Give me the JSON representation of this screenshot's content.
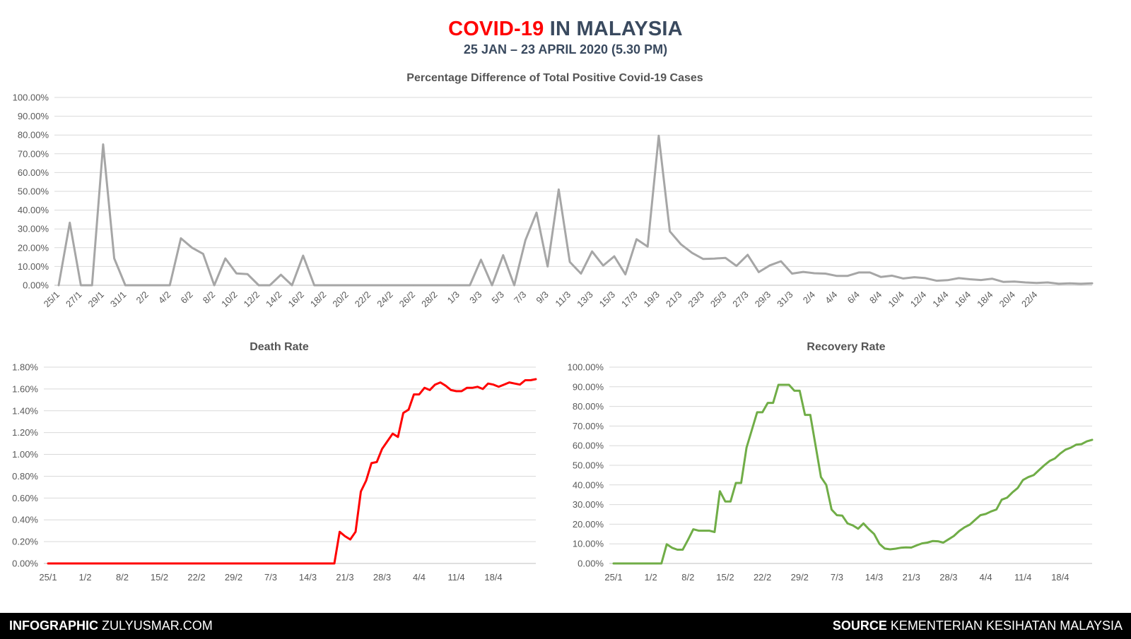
{
  "header": {
    "title_red": "COVID-19",
    "title_rest": "IN MALAYSIA",
    "subtitle": "25 JAN – 23 APRIL 2020 (5.30 PM)"
  },
  "colors": {
    "red": "#ff0000",
    "dark": "#3a4a5f",
    "grey_line": "#a6a6a6",
    "green_line": "#70ad47",
    "grid": "#d9d9d9"
  },
  "chart_data": [
    {
      "type": "line",
      "title": "Percentage Difference of Total Positive Covid-19 Cases",
      "series_color": "#a6a6a6",
      "ylim": [
        0,
        100
      ],
      "yticks": [
        "0.00%",
        "10.00%",
        "20.00%",
        "30.00%",
        "40.00%",
        "50.00%",
        "60.00%",
        "70.00%",
        "80.00%",
        "90.00%",
        "100.00%"
      ],
      "ytick_values": [
        0,
        10,
        20,
        30,
        40,
        50,
        60,
        70,
        80,
        90,
        100
      ],
      "xtick_labels": [
        "25/1",
        "27/1",
        "29/1",
        "31/1",
        "2/2",
        "4/2",
        "6/2",
        "8/2",
        "10/2",
        "12/2",
        "14/2",
        "16/2",
        "18/2",
        "20/2",
        "22/2",
        "24/2",
        "26/2",
        "28/2",
        "1/3",
        "3/3",
        "5/3",
        "7/3",
        "9/3",
        "11/3",
        "13/3",
        "15/3",
        "17/3",
        "19/3",
        "21/3",
        "23/3",
        "25/3",
        "27/3",
        "29/3",
        "31/3",
        "2/4",
        "4/4",
        "6/4",
        "8/4",
        "10/4",
        "12/4",
        "14/4",
        "16/4",
        "18/4",
        "20/4",
        "22/4"
      ],
      "x_start_date": "2020-01-25",
      "values": [
        0,
        33.3,
        0,
        0,
        75,
        14.3,
        0,
        0,
        0,
        0,
        0,
        25,
        20,
        16.7,
        0,
        14.3,
        6.3,
        5.9,
        0,
        0,
        5.6,
        0,
        15.8,
        0,
        0,
        0,
        0,
        0,
        0,
        0,
        0,
        0,
        0,
        0,
        0,
        0,
        0,
        0,
        13.6,
        0,
        16,
        0,
        24,
        38.7,
        10,
        51,
        12.4,
        6.2,
        18,
        10.5,
        15.4,
        5.8,
        24.5,
        20.6,
        79.6,
        28.7,
        21.8,
        17.2,
        14,
        14.2,
        14.6,
        10.3,
        16.2,
        7,
        10.6,
        12.8,
        6.2,
        7.1,
        6.4,
        6.2,
        5,
        5,
        6.8,
        6.8,
        4.4,
        5.1,
        3.6,
        4.3,
        3.8,
        2.4,
        2.7,
        3.8,
        3.2,
        2.8,
        3.5,
        1.8,
        2,
        1.5,
        1.2,
        1.5,
        0.8,
        1,
        0.8,
        1
      ]
    },
    {
      "type": "line",
      "title": "Death Rate",
      "series_color": "#ff0000",
      "ylim": [
        0,
        1.8
      ],
      "yticks": [
        "0.00%",
        "0.20%",
        "0.40%",
        "0.60%",
        "0.80%",
        "1.00%",
        "1.20%",
        "1.40%",
        "1.60%",
        "1.80%"
      ],
      "ytick_values": [
        0,
        0.2,
        0.4,
        0.6,
        0.8,
        1.0,
        1.2,
        1.4,
        1.6,
        1.8
      ],
      "xtick_labels": [
        "25/1",
        "1/2",
        "8/2",
        "15/2",
        "22/2",
        "29/2",
        "7/3",
        "14/3",
        "21/3",
        "28/3",
        "4/4",
        "11/4",
        "18/4"
      ],
      "x_start_date": "2020-01-25",
      "values": [
        0,
        0,
        0,
        0,
        0,
        0,
        0,
        0,
        0,
        0,
        0,
        0,
        0,
        0,
        0,
        0,
        0,
        0,
        0,
        0,
        0,
        0,
        0,
        0,
        0,
        0,
        0,
        0,
        0,
        0,
        0,
        0,
        0,
        0,
        0,
        0,
        0,
        0,
        0,
        0,
        0,
        0,
        0,
        0,
        0,
        0,
        0,
        0,
        0,
        0,
        0,
        0,
        0,
        0,
        0,
        0.29,
        0.25,
        0.22,
        0.29,
        0.66,
        0.76,
        0.92,
        0.93,
        1.05,
        1.12,
        1.19,
        1.16,
        1.38,
        1.41,
        1.55,
        1.55,
        1.61,
        1.59,
        1.64,
        1.66,
        1.63,
        1.59,
        1.58,
        1.58,
        1.61,
        1.61,
        1.62,
        1.6,
        1.65,
        1.64,
        1.62,
        1.64,
        1.66,
        1.65,
        1.64,
        1.68,
        1.68,
        1.69
      ]
    },
    {
      "type": "line",
      "title": "Recovery Rate",
      "series_color": "#70ad47",
      "ylim": [
        0,
        100
      ],
      "yticks": [
        "0.00%",
        "10.00%",
        "20.00%",
        "30.00%",
        "40.00%",
        "50.00%",
        "60.00%",
        "70.00%",
        "80.00%",
        "90.00%",
        "100.00%"
      ],
      "ytick_values": [
        0,
        10,
        20,
        30,
        40,
        50,
        60,
        70,
        80,
        90,
        100
      ],
      "xtick_labels": [
        "25/1",
        "1/2",
        "8/2",
        "15/2",
        "22/2",
        "29/2",
        "7/3",
        "14/3",
        "21/3",
        "28/3",
        "4/4",
        "11/4",
        "18/4"
      ],
      "x_start_date": "2020-01-25",
      "values": [
        0,
        0,
        0,
        0,
        0,
        0,
        0,
        0,
        0,
        0,
        9.8,
        8,
        7,
        7,
        12,
        17.4,
        16.7,
        16.7,
        16.7,
        16,
        36.8,
        31.6,
        31.6,
        41,
        41,
        59,
        68,
        77,
        77,
        81.8,
        81.8,
        91,
        91,
        91,
        88,
        88,
        75.7,
        75.7,
        60,
        44,
        40,
        27.5,
        24.6,
        24.4,
        20.4,
        19.4,
        17.7,
        20.4,
        17.5,
        15,
        10,
        7.6,
        7.2,
        7.5,
        8,
        8.2,
        8.1,
        9.2,
        10.2,
        10.6,
        11.4,
        11.3,
        10.6,
        12.3,
        14,
        16.5,
        18.4,
        19.8,
        22.2,
        24.6,
        25.2,
        26.5,
        27.5,
        32.5,
        33.5,
        36.2,
        38.4,
        42.5,
        44,
        45,
        47.5,
        50,
        52.2,
        53.5,
        56,
        58,
        59,
        60.5,
        60.8,
        62.2,
        63
      ]
    }
  ],
  "footer": {
    "left_bold": "INFOGRAPHIC",
    "left_text": "ZULYUSMAR.COM",
    "right_bold": "SOURCE",
    "right_text": "KEMENTERIAN KESIHATAN MALAYSIA"
  }
}
